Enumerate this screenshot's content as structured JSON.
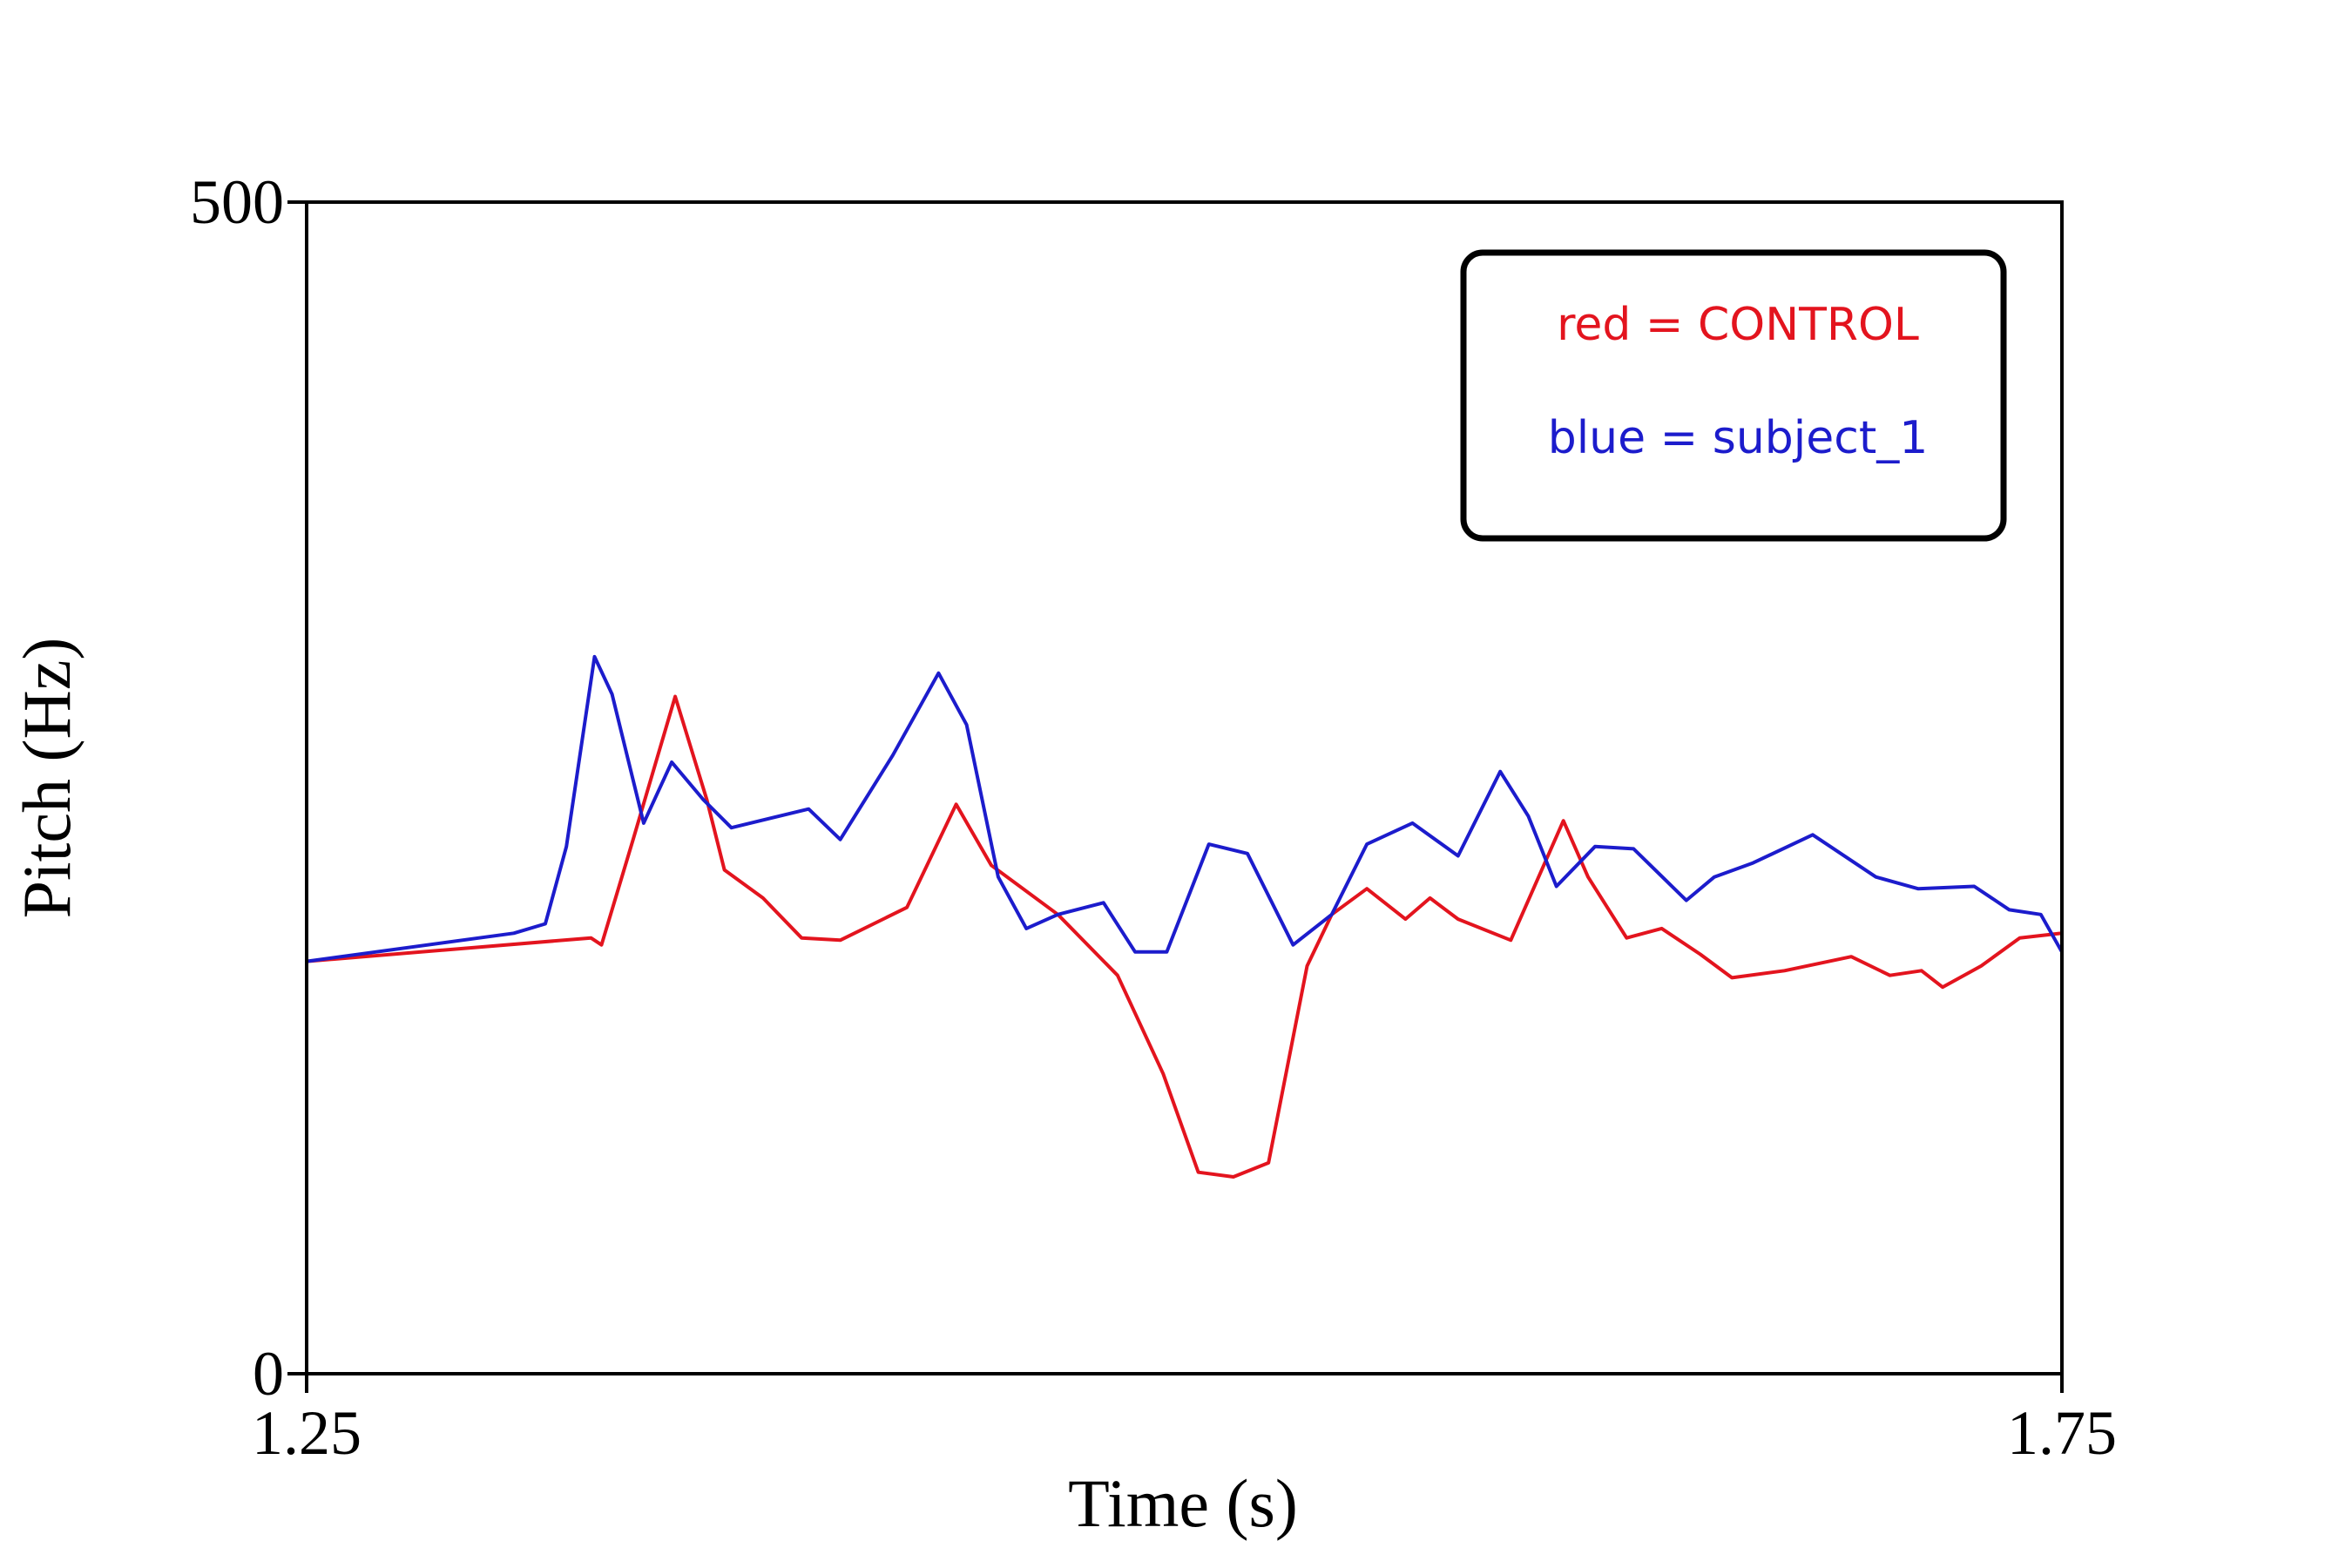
{
  "chart_data": {
    "type": "line",
    "x_label": "Time (s)",
    "y_label": "Pitch (Hz)",
    "xlim": [
      1.25,
      1.75
    ],
    "xticks": [
      1.25,
      1.75
    ],
    "ylim": [
      0,
      500
    ],
    "yticks": [
      0,
      500
    ],
    "grid": false,
    "legend": "upper right",
    "series": [
      {
        "name": "red = CONTROL",
        "color": "#e3141e",
        "x": [
          1.25,
          1.331,
          1.334,
          1.343,
          1.355,
          1.364,
          1.369,
          1.38,
          1.391,
          1.402,
          1.421,
          1.435,
          1.445,
          1.464,
          1.481,
          1.494,
          1.504,
          1.514,
          1.524,
          1.535,
          1.542,
          1.552,
          1.563,
          1.57,
          1.578,
          1.593,
          1.608,
          1.615,
          1.626,
          1.636,
          1.647,
          1.656,
          1.671,
          1.69,
          1.701,
          1.71,
          1.716,
          1.727,
          1.738,
          1.75
        ],
        "values": [
          176,
          186,
          183,
          228,
          289,
          245,
          215,
          203,
          186,
          185,
          199,
          243,
          217,
          196,
          170,
          128,
          86,
          84,
          90,
          174,
          196,
          207,
          194,
          203,
          194,
          185,
          236,
          212,
          186,
          190,
          179,
          169,
          172,
          178,
          170,
          172,
          165,
          174,
          186,
          188
        ]
      },
      {
        "name": "blue = subject_1",
        "color": "#1c1ccc",
        "x": [
          1.25,
          1.309,
          1.318,
          1.324,
          1.332,
          1.337,
          1.346,
          1.354,
          1.363,
          1.371,
          1.393,
          1.402,
          1.417,
          1.43,
          1.438,
          1.447,
          1.455,
          1.464,
          1.477,
          1.486,
          1.495,
          1.507,
          1.518,
          1.531,
          1.542,
          1.552,
          1.565,
          1.578,
          1.59,
          1.598,
          1.606,
          1.617,
          1.628,
          1.643,
          1.651,
          1.662,
          1.679,
          1.697,
          1.709,
          1.725,
          1.735,
          1.744,
          1.75
        ],
        "values": [
          176,
          188,
          192,
          225,
          306,
          290,
          235,
          261,
          245,
          233,
          241,
          228,
          264,
          299,
          277,
          212,
          190,
          196,
          201,
          180,
          180,
          226,
          222,
          183,
          196,
          226,
          235,
          221,
          257,
          238,
          208,
          225,
          224,
          202,
          212,
          218,
          230,
          212,
          207,
          208,
          198,
          196,
          180
        ]
      }
    ]
  }
}
